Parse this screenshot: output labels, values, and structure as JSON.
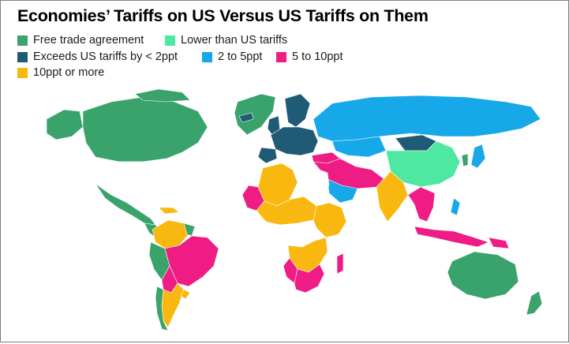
{
  "title": "Economies’ Tariffs on US Versus US Tariffs on Them",
  "legend": [
    {
      "label": "Free trade agreement",
      "color": "#3aa36b"
    },
    {
      "label": "Lower than US tariffs",
      "color": "#4fe8a0"
    },
    {
      "label": "Exceeds US tariffs by < 2ppt",
      "color": "#1f5b77"
    },
    {
      "label": "2 to 5ppt",
      "color": "#16a8e8"
    },
    {
      "label": "5 to 10ppt",
      "color": "#ee1c84"
    },
    {
      "label": "10ppt or more",
      "color": "#f8b810"
    }
  ],
  "no_data_color": "#ffffff",
  "border_color": "#444444"
}
